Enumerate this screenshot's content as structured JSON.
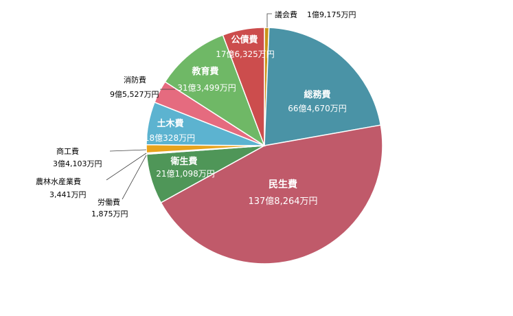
{
  "chart_data": {
    "type": "pie",
    "title": "",
    "unit": "万円",
    "slices": [
      {
        "name": "議会費",
        "value": 19175,
        "name_label": "議会費",
        "value_label": "1億9,175万円",
        "color": "#c9951a"
      },
      {
        "name": "総務費",
        "value": 664670,
        "name_label": "総務費",
        "value_label": "66億4,670万円",
        "color": "#4a93a6"
      },
      {
        "name": "民生費",
        "value": 1378264,
        "name_label": "民生費",
        "value_label": "137億8,264万円",
        "color": "#c05a6a"
      },
      {
        "name": "衛生費",
        "value": 211098,
        "name_label": "衛生費",
        "value_label": "21億1,098万円",
        "color": "#4f9658"
      },
      {
        "name": "労働費",
        "value": 1875,
        "name_label": "労働費",
        "value_label": "1,875万円",
        "color": "#8e9a3c"
      },
      {
        "name": "農林水産業費",
        "value": 3441,
        "name_label": "農林水産業費",
        "value_label": "3,441万円",
        "color": "#7e7e2e"
      },
      {
        "name": "商工費",
        "value": 34103,
        "name_label": "商工費",
        "value_label": "3億4,103万円",
        "color": "#e8a31c"
      },
      {
        "name": "土木費",
        "value": 180328,
        "name_label": "土木費",
        "value_label": "18億328万円",
        "color": "#5cb3d0"
      },
      {
        "name": "消防費",
        "value": 95527,
        "name_label": "消防費",
        "value_label": "9億5,527万円",
        "color": "#e56b7f"
      },
      {
        "name": "教育費",
        "value": 313499,
        "name_label": "教育費",
        "value_label": "31億3,499万円",
        "color": "#6fb866"
      },
      {
        "name": "公債費",
        "value": 176325,
        "name_label": "公債費",
        "value_label": "17億6,325万円",
        "color": "#cc4d4d"
      }
    ]
  }
}
